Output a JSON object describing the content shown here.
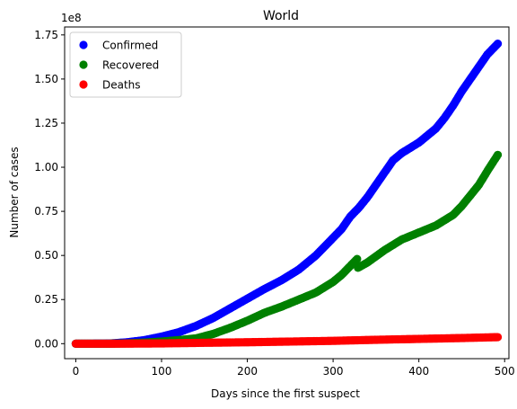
{
  "chart_data": {
    "type": "scatter",
    "title": "World",
    "xlabel": "Days since the first suspect",
    "ylabel": "Number of cases",
    "y_offset_text": "1e8",
    "xlim": [
      -13,
      505
    ],
    "ylim": [
      -0.085,
      1.795
    ],
    "xticks": [
      0,
      100,
      200,
      300,
      400,
      500
    ],
    "yticks": [
      "0.00",
      "0.25",
      "0.50",
      "0.75",
      "1.00",
      "1.25",
      "1.50",
      "1.75"
    ],
    "legend_position": "top-left",
    "series": [
      {
        "name": "Confirmed",
        "color": "#0000ff",
        "points": [
          [
            0,
            0
          ],
          [
            20,
            0.0001
          ],
          [
            40,
            0.001
          ],
          [
            60,
            0.008
          ],
          [
            80,
            0.02
          ],
          [
            100,
            0.04
          ],
          [
            120,
            0.065
          ],
          [
            140,
            0.1
          ],
          [
            160,
            0.145
          ],
          [
            180,
            0.2
          ],
          [
            200,
            0.255
          ],
          [
            220,
            0.31
          ],
          [
            240,
            0.36
          ],
          [
            260,
            0.42
          ],
          [
            280,
            0.5
          ],
          [
            300,
            0.6
          ],
          [
            310,
            0.65
          ],
          [
            320,
            0.72
          ],
          [
            330,
            0.77
          ],
          [
            340,
            0.83
          ],
          [
            350,
            0.9
          ],
          [
            360,
            0.97
          ],
          [
            370,
            1.04
          ],
          [
            380,
            1.08
          ],
          [
            390,
            1.11
          ],
          [
            400,
            1.14
          ],
          [
            410,
            1.18
          ],
          [
            420,
            1.22
          ],
          [
            430,
            1.28
          ],
          [
            440,
            1.35
          ],
          [
            450,
            1.43
          ],
          [
            460,
            1.5
          ],
          [
            470,
            1.57
          ],
          [
            480,
            1.64
          ],
          [
            492,
            1.7
          ]
        ]
      },
      {
        "name": "Recovered",
        "color": "#008000",
        "points": [
          [
            0,
            0
          ],
          [
            40,
            0
          ],
          [
            60,
            0.002
          ],
          [
            80,
            0.006
          ],
          [
            100,
            0.012
          ],
          [
            120,
            0.02
          ],
          [
            140,
            0.03
          ],
          [
            160,
            0.055
          ],
          [
            180,
            0.09
          ],
          [
            200,
            0.13
          ],
          [
            220,
            0.175
          ],
          [
            240,
            0.21
          ],
          [
            260,
            0.25
          ],
          [
            280,
            0.29
          ],
          [
            300,
            0.35
          ],
          [
            310,
            0.39
          ],
          [
            320,
            0.44
          ],
          [
            328,
            0.48
          ],
          [
            329,
            0.43
          ],
          [
            340,
            0.46
          ],
          [
            360,
            0.53
          ],
          [
            380,
            0.59
          ],
          [
            400,
            0.63
          ],
          [
            420,
            0.67
          ],
          [
            440,
            0.73
          ],
          [
            450,
            0.78
          ],
          [
            460,
            0.84
          ],
          [
            470,
            0.9
          ],
          [
            480,
            0.98
          ],
          [
            492,
            1.07
          ]
        ]
      },
      {
        "name": "Deaths",
        "color": "#ff0000",
        "points": [
          [
            0,
            0
          ],
          [
            50,
            0
          ],
          [
            100,
            0.0015
          ],
          [
            150,
            0.005
          ],
          [
            200,
            0.008
          ],
          [
            250,
            0.012
          ],
          [
            300,
            0.016
          ],
          [
            350,
            0.022
          ],
          [
            400,
            0.027
          ],
          [
            450,
            0.032
          ],
          [
            492,
            0.037
          ]
        ]
      }
    ]
  }
}
